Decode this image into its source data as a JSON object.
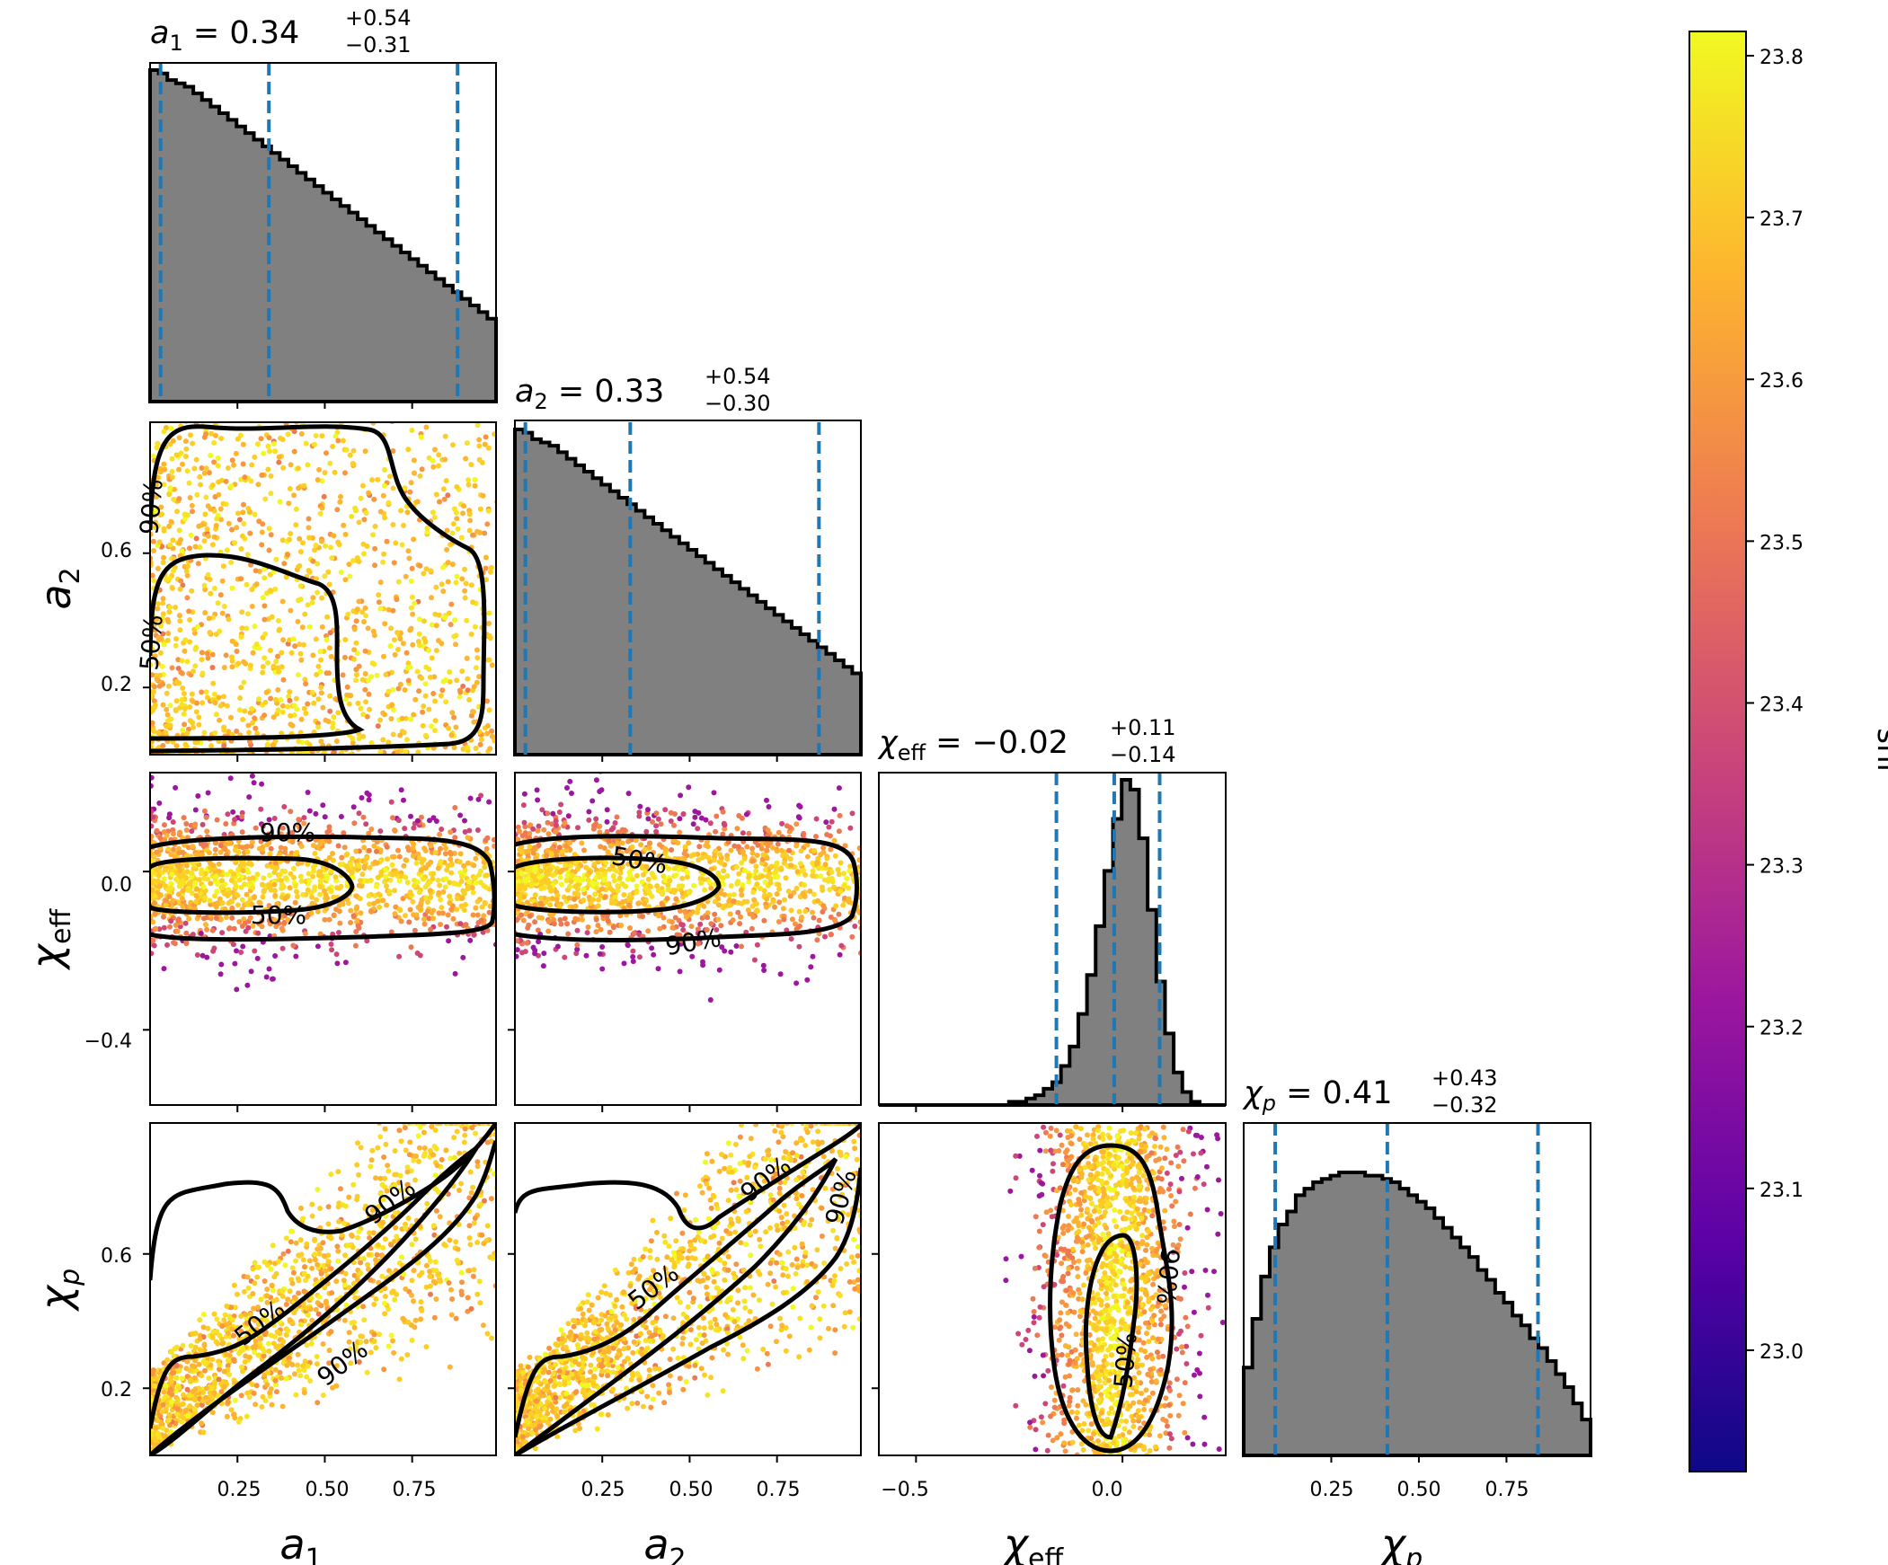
{
  "chart_data": {
    "type": "corner",
    "parameters": [
      {
        "symbol": "a",
        "subscript": "1",
        "median": "0.34",
        "plus": "+0.54",
        "minus": "−0.31"
      },
      {
        "symbol": "a",
        "subscript": "2",
        "median": "0.33",
        "plus": "+0.54",
        "minus": "−0.30"
      },
      {
        "symbol": "χ",
        "subscript": "eff",
        "median": "−0.02",
        "plus": "+0.11",
        "minus": "−0.14"
      },
      {
        "symbol": "χ",
        "subscript": "p",
        "median": "0.41",
        "plus": "+0.43",
        "minus": "−0.32"
      }
    ],
    "ranges": [
      [
        0.0,
        0.99
      ],
      [
        0.0,
        0.99
      ],
      [
        -0.59,
        0.25
      ],
      [
        0.0,
        0.99
      ]
    ],
    "ticks": {
      "a1_x": [
        "0.25",
        "0.50",
        "0.75"
      ],
      "a2_x": [
        "0.25",
        "0.50",
        "0.75"
      ],
      "chi_eff_x": [
        "−0.5",
        "0.0"
      ],
      "chi_p_x": [
        "0.25",
        "0.50",
        "0.75"
      ],
      "a2_y": [
        "0.6",
        "0.2"
      ],
      "chi_eff_y": [
        "0.0",
        "−0.4"
      ],
      "chi_p_y": [
        "0.6",
        "0.2"
      ]
    },
    "tick_values": {
      "a1_x": [
        0.25,
        0.5,
        0.75
      ],
      "a2_x": [
        0.25,
        0.5,
        0.75
      ],
      "chi_eff_x": [
        -0.5,
        0.0
      ],
      "chi_p_x": [
        0.25,
        0.5,
        0.75
      ],
      "a2_y": [
        0.6,
        0.2
      ],
      "chi_eff_y": [
        0.0,
        -0.4
      ],
      "chi_p_y": [
        0.6,
        0.2
      ]
    },
    "quantile_lines": [
      [
        0.03,
        0.34,
        0.88
      ],
      [
        0.03,
        0.33,
        0.87
      ],
      [
        -0.16,
        -0.02,
        0.09
      ],
      [
        0.09,
        0.41,
        0.84
      ]
    ],
    "histograms": [
      [
        1.0,
        0.99,
        0.97,
        0.96,
        0.95,
        0.93,
        0.91,
        0.89,
        0.87,
        0.85,
        0.83,
        0.81,
        0.79,
        0.77,
        0.75,
        0.73,
        0.71,
        0.69,
        0.67,
        0.65,
        0.63,
        0.61,
        0.59,
        0.57,
        0.55,
        0.53,
        0.51,
        0.49,
        0.47,
        0.45,
        0.43,
        0.41,
        0.39,
        0.37,
        0.35,
        0.33,
        0.31,
        0.29,
        0.27,
        0.25
      ],
      [
        1.0,
        0.99,
        0.97,
        0.96,
        0.95,
        0.93,
        0.91,
        0.89,
        0.87,
        0.85,
        0.83,
        0.81,
        0.79,
        0.77,
        0.75,
        0.73,
        0.71,
        0.69,
        0.67,
        0.65,
        0.63,
        0.61,
        0.59,
        0.57,
        0.55,
        0.53,
        0.51,
        0.49,
        0.47,
        0.45,
        0.43,
        0.41,
        0.39,
        0.37,
        0.35,
        0.33,
        0.31,
        0.29,
        0.27,
        0.25
      ],
      [
        0.0,
        0.0,
        0.0,
        0.0,
        0.0,
        0.0,
        0.0,
        0.0,
        0.0,
        0.0,
        0.0,
        0.0,
        0.0,
        0.0,
        0.0,
        0.01,
        0.01,
        0.02,
        0.03,
        0.05,
        0.07,
        0.12,
        0.18,
        0.28,
        0.4,
        0.55,
        0.72,
        0.88,
        1.0,
        0.97,
        0.82,
        0.6,
        0.38,
        0.22,
        0.1,
        0.04,
        0.01,
        0.0,
        0.0,
        0.0
      ],
      [
        0.27,
        0.42,
        0.55,
        0.64,
        0.71,
        0.75,
        0.8,
        0.82,
        0.84,
        0.85,
        0.86,
        0.87,
        0.87,
        0.87,
        0.86,
        0.86,
        0.85,
        0.84,
        0.82,
        0.8,
        0.78,
        0.76,
        0.73,
        0.7,
        0.67,
        0.64,
        0.61,
        0.57,
        0.54,
        0.5,
        0.47,
        0.43,
        0.4,
        0.36,
        0.33,
        0.29,
        0.25,
        0.21,
        0.16,
        0.11
      ]
    ],
    "contour_labels": [
      "50%",
      "90%"
    ],
    "colorbar": {
      "label": "snr",
      "ticks": [
        "23.8",
        "23.7",
        "23.6",
        "23.5",
        "23.4",
        "23.3",
        "23.2",
        "23.1",
        "23.0"
      ],
      "tick_values": [
        23.8,
        23.7,
        23.6,
        23.5,
        23.4,
        23.3,
        23.2,
        23.1,
        23.0
      ],
      "range": [
        22.925,
        23.815
      ],
      "colormap": "plasma",
      "colors": [
        "#0d0887",
        "#5c01a6",
        "#9c179e",
        "#cc4778",
        "#ed7953",
        "#fdb42f",
        "#f0f921"
      ]
    },
    "colors": {
      "hist_fill": "#808080",
      "quantile_line": "#1f77b4",
      "contour": "#000000"
    }
  }
}
